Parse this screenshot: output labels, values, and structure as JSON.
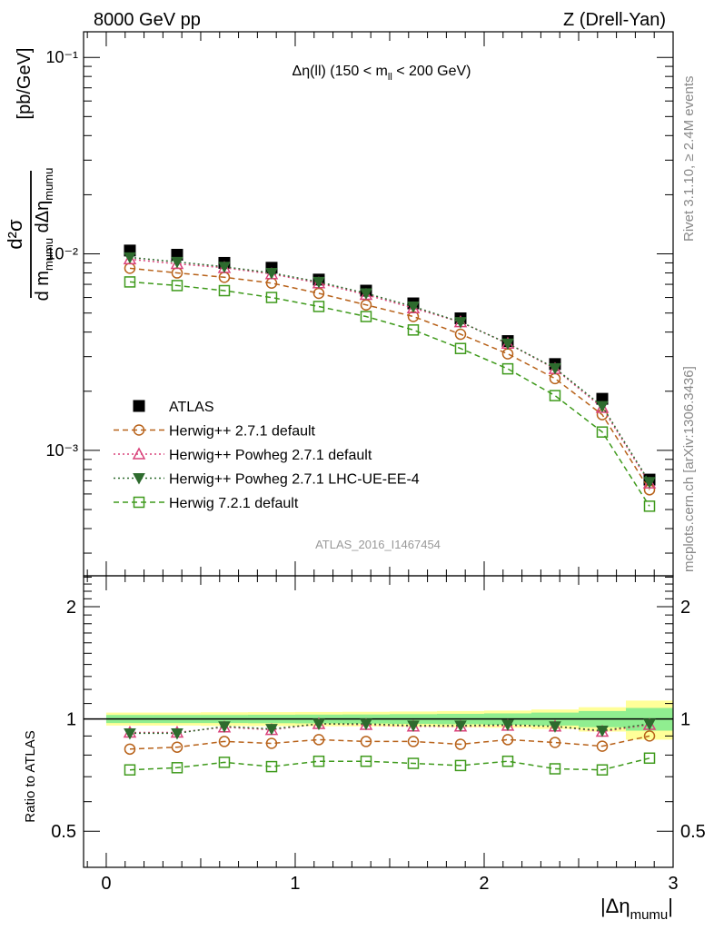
{
  "header": {
    "left": "8000 GeV pp",
    "right": "Z (Drell-Yan)"
  },
  "side_labels": {
    "rivet": "Rivet 3.1.10, ≥ 2.4M events",
    "mcplots": "mcplots.cern.ch [arXiv:1306.3436]"
  },
  "chart_data": [
    {
      "type": "scatter",
      "panel": "main",
      "title": "Δη(ll) (150 < m_ll < 200 GeV)",
      "title_parts": {
        "pre": "Δη(ll) (150 < m",
        "sub": "ll",
        "post": " < 200 GeV)"
      },
      "ylabel_units": "[pb/GeV]",
      "ylabel_parts": {
        "num": "d²σ",
        "den_a": "d m",
        "den_a_sub": "mumu",
        "den_b": " dΔη",
        "den_b_sub": "mumu"
      },
      "watermark": "ATLAS_2016_I1467454",
      "yscale": "log",
      "xlim": [
        -0.12,
        3.0
      ],
      "ylim": [
        0.00023,
        0.135
      ],
      "yticks": [
        "10⁻³",
        "10⁻²",
        "10⁻¹"
      ],
      "legend_position": "lower-left",
      "x": [
        0.125,
        0.375,
        0.625,
        0.875,
        1.125,
        1.375,
        1.625,
        1.875,
        2.125,
        2.375,
        2.625,
        2.875
      ],
      "series": [
        {
          "name": "ATLAS",
          "color": "#000000",
          "marker": "square-filled",
          "line": "none",
          "values": [
            0.0104,
            0.0099,
            0.009,
            0.0085,
            0.0074,
            0.0065,
            0.0056,
            0.0047,
            0.0036,
            0.00275,
            0.00183,
            0.00071
          ]
        },
        {
          "name": "Herwig++ 2.7.1 default",
          "color": "#b8621a",
          "marker": "circle-open",
          "line": "dashed",
          "values": [
            0.00845,
            0.008,
            0.0076,
            0.0071,
            0.0063,
            0.0055,
            0.0048,
            0.0039,
            0.0031,
            0.00232,
            0.00152,
            0.00063
          ]
        },
        {
          "name": "Herwig++ Powheg 2.7.1 default",
          "color": "#d9427a",
          "marker": "triangle-up-open",
          "line": "dotted",
          "values": [
            0.0094,
            0.0089,
            0.0085,
            0.0079,
            0.0071,
            0.0062,
            0.0053,
            0.0045,
            0.0035,
            0.0026,
            0.00165,
            0.00068
          ]
        },
        {
          "name": "Herwig++ Powheg 2.7.1 LHC-UE-EE-4",
          "color": "#2e6b2e",
          "marker": "triangle-down-filled",
          "line": "dotted",
          "values": [
            0.0096,
            0.0091,
            0.0086,
            0.008,
            0.0072,
            0.0063,
            0.0054,
            0.0045,
            0.0035,
            0.00262,
            0.00168,
            0.00069
          ]
        },
        {
          "name": "Herwig 7.2.1 default",
          "color": "#3f9a1c",
          "marker": "square-open",
          "line": "dashed",
          "values": [
            0.0072,
            0.0069,
            0.0065,
            0.006,
            0.0054,
            0.0048,
            0.0041,
            0.0033,
            0.0026,
            0.0019,
            0.00124,
            0.00052
          ]
        }
      ]
    },
    {
      "type": "scatter",
      "panel": "ratio",
      "ylabel": "Ratio to ATLAS",
      "xlabel_parts": {
        "main": "|Δη",
        "sub": "mumu",
        "end": "|"
      },
      "yscale": "log",
      "xlim": [
        -0.12,
        3.0
      ],
      "ylim": [
        0.4,
        2.42
      ],
      "yticks": [
        0.5,
        1,
        2
      ],
      "xticks": [
        0,
        1,
        2,
        3
      ],
      "x": [
        0.125,
        0.375,
        0.625,
        0.875,
        1.125,
        1.375,
        1.625,
        1.875,
        2.125,
        2.375,
        2.625,
        2.875
      ],
      "band_edges": [
        0,
        0.25,
        0.5,
        0.75,
        1.0,
        1.25,
        1.5,
        1.75,
        2.0,
        2.25,
        2.5,
        2.75,
        3.0
      ],
      "stat_band": {
        "color": "#90ee90",
        "low": [
          0.975,
          0.975,
          0.975,
          0.974,
          0.973,
          0.972,
          0.97,
          0.968,
          0.965,
          0.96,
          0.95,
          0.93
        ],
        "high": [
          1.025,
          1.025,
          1.025,
          1.026,
          1.027,
          1.028,
          1.03,
          1.032,
          1.035,
          1.04,
          1.05,
          1.07
        ]
      },
      "total_band": {
        "color": "#ffff99",
        "low": [
          0.96,
          0.96,
          0.958,
          0.957,
          0.956,
          0.955,
          0.953,
          0.95,
          0.947,
          0.94,
          0.925,
          0.88
        ],
        "high": [
          1.04,
          1.04,
          1.042,
          1.043,
          1.044,
          1.045,
          1.047,
          1.05,
          1.053,
          1.06,
          1.075,
          1.12
        ]
      },
      "series": [
        {
          "name": "Herwig++ 2.7.1 default",
          "color": "#b8621a",
          "marker": "circle-open",
          "line": "dashed",
          "values": [
            0.83,
            0.84,
            0.87,
            0.86,
            0.88,
            0.87,
            0.87,
            0.855,
            0.88,
            0.865,
            0.845,
            0.9
          ]
        },
        {
          "name": "Herwig++ Powheg 2.7.1 default",
          "color": "#d9427a",
          "marker": "triangle-up-open",
          "line": "dotted",
          "values": [
            0.92,
            0.92,
            0.95,
            0.935,
            0.97,
            0.965,
            0.955,
            0.955,
            0.96,
            0.955,
            0.925,
            0.965
          ]
        },
        {
          "name": "Herwig++ Powheg 2.7.1 LHC-UE-EE-4",
          "color": "#2e6b2e",
          "marker": "triangle-down-filled",
          "line": "dotted",
          "values": [
            0.915,
            0.915,
            0.955,
            0.94,
            0.97,
            0.97,
            0.96,
            0.96,
            0.965,
            0.955,
            0.93,
            0.97
          ]
        },
        {
          "name": "Herwig 7.2.1 default",
          "color": "#3f9a1c",
          "marker": "square-open",
          "line": "dashed",
          "values": [
            0.73,
            0.74,
            0.765,
            0.745,
            0.77,
            0.77,
            0.76,
            0.75,
            0.77,
            0.735,
            0.73,
            0.785
          ]
        }
      ]
    }
  ]
}
